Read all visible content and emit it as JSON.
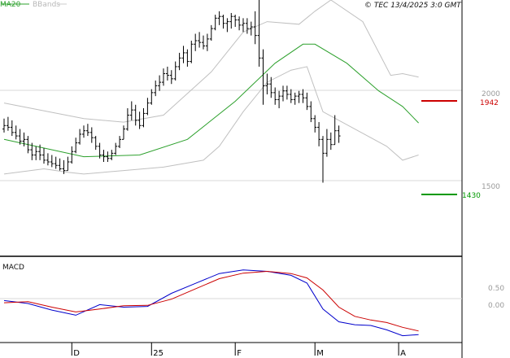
{
  "legend": {
    "ma20_label": "MA20",
    "bbands_label": "BBands",
    "ma20_color": "#2ca02c",
    "bbands_color": "#b8b8b8"
  },
  "copyright": "© TEC 13/4/2025 3:0 GMT",
  "macd_label": "MACD",
  "price_levels": [
    {
      "label": "2000",
      "value": 2000
    },
    {
      "label": "1500",
      "value": 1500
    }
  ],
  "macd_levels": [
    {
      "label": "0.50",
      "value": 0.5
    },
    {
      "label": "0.00",
      "value": 0.0
    }
  ],
  "markers": [
    {
      "label": "1942",
      "value": 1942,
      "color": "#cc0000"
    },
    {
      "label": "1430",
      "value": 1430,
      "color": "#009900"
    }
  ],
  "x_labels": [
    {
      "label": "D",
      "index": 17
    },
    {
      "label": "25",
      "index": 37
    },
    {
      "label": "F",
      "index": 58
    },
    {
      "label": "M",
      "index": 78
    },
    {
      "label": "A",
      "index": 99
    }
  ],
  "chart_data": {
    "type": "line",
    "price_ylim": [
      1005,
      2485
    ],
    "macd_ylim": [
      -0.9,
      1.28
    ],
    "series": [
      {
        "name": "MA20",
        "color": "#2ca02c",
        "x": [
          0,
          20,
          34,
          46,
          58,
          68,
          75,
          78,
          86,
          94,
          100,
          104
        ],
        "y": [
          1680,
          1580,
          1590,
          1680,
          1900,
          2120,
          2230,
          2230,
          2120,
          1960,
          1870,
          1775
        ]
      },
      {
        "name": "BBands upper",
        "color": "#c0c0c0",
        "x": [
          0,
          20,
          30,
          40,
          52,
          60,
          66,
          74,
          78,
          82,
          90,
          97,
          100,
          104
        ],
        "y": [
          1890,
          1800,
          1780,
          1820,
          2070,
          2300,
          2360,
          2345,
          2420,
          2485,
          2360,
          2050,
          2060,
          2040
        ]
      },
      {
        "name": "BBands lower",
        "color": "#c0c0c0",
        "x": [
          0,
          10,
          16,
          20,
          30,
          40,
          50,
          54,
          60,
          66,
          72,
          76,
          80,
          88,
          96,
          100,
          104
        ],
        "y": [
          1480,
          1510,
          1490,
          1480,
          1500,
          1520,
          1560,
          1640,
          1840,
          2010,
          2080,
          2100,
          1840,
          1740,
          1640,
          1560,
          1590
        ]
      },
      {
        "name": "MACD",
        "color": "#0000cc",
        "x": [
          0,
          6,
          12,
          18,
          24,
          30,
          36,
          42,
          48,
          54,
          60,
          66,
          72,
          76,
          80,
          84,
          88,
          92,
          96,
          100,
          104
        ],
        "y": [
          0.18,
          0.1,
          -0.08,
          -0.22,
          0.07,
          0.0,
          0.02,
          0.38,
          0.65,
          0.92,
          1.02,
          0.98,
          0.87,
          0.66,
          -0.05,
          -0.4,
          -0.48,
          -0.5,
          -0.62,
          -0.78,
          -0.75
        ]
      },
      {
        "name": "Signal",
        "color": "#cc0000",
        "x": [
          0,
          6,
          12,
          18,
          24,
          30,
          36,
          42,
          48,
          54,
          60,
          66,
          72,
          76,
          80,
          84,
          88,
          92,
          96,
          100,
          104
        ],
        "y": [
          0.12,
          0.15,
          0.0,
          -0.13,
          -0.05,
          0.04,
          0.05,
          0.22,
          0.5,
          0.78,
          0.93,
          0.98,
          0.92,
          0.8,
          0.47,
          0.0,
          -0.25,
          -0.35,
          -0.42,
          -0.55,
          -0.65
        ]
      }
    ],
    "ohlc": [
      {
        "h": 1800,
        "l": 1720,
        "o": 1740,
        "c": 1760
      },
      {
        "h": 1810,
        "l": 1730,
        "o": 1760,
        "c": 1750
      },
      {
        "h": 1790,
        "l": 1700,
        "o": 1750,
        "c": 1720
      },
      {
        "h": 1760,
        "l": 1680,
        "o": 1720,
        "c": 1700
      },
      {
        "h": 1740,
        "l": 1650,
        "o": 1700,
        "c": 1670
      },
      {
        "h": 1720,
        "l": 1640,
        "o": 1670,
        "c": 1680
      },
      {
        "h": 1700,
        "l": 1600,
        "o": 1680,
        "c": 1620
      },
      {
        "h": 1660,
        "l": 1560,
        "o": 1620,
        "c": 1590
      },
      {
        "h": 1640,
        "l": 1560,
        "o": 1590,
        "c": 1610
      },
      {
        "h": 1650,
        "l": 1560,
        "o": 1610,
        "c": 1590
      },
      {
        "h": 1630,
        "l": 1540,
        "o": 1590,
        "c": 1560
      },
      {
        "h": 1600,
        "l": 1530,
        "o": 1560,
        "c": 1550
      },
      {
        "h": 1590,
        "l": 1520,
        "o": 1550,
        "c": 1540
      },
      {
        "h": 1580,
        "l": 1510,
        "o": 1540,
        "c": 1530
      },
      {
        "h": 1570,
        "l": 1500,
        "o": 1530,
        "c": 1510
      },
      {
        "h": 1560,
        "l": 1480,
        "o": 1510,
        "c": 1500
      },
      {
        "h": 1580,
        "l": 1500,
        "o": 1500,
        "c": 1550
      },
      {
        "h": 1640,
        "l": 1540,
        "o": 1550,
        "c": 1610
      },
      {
        "h": 1690,
        "l": 1600,
        "o": 1610,
        "c": 1660
      },
      {
        "h": 1740,
        "l": 1650,
        "o": 1660,
        "c": 1710
      },
      {
        "h": 1760,
        "l": 1690,
        "o": 1710,
        "c": 1730
      },
      {
        "h": 1770,
        "l": 1700,
        "o": 1730,
        "c": 1720
      },
      {
        "h": 1750,
        "l": 1660,
        "o": 1720,
        "c": 1690
      },
      {
        "h": 1700,
        "l": 1620,
        "o": 1690,
        "c": 1640
      },
      {
        "h": 1660,
        "l": 1570,
        "o": 1640,
        "c": 1590
      },
      {
        "h": 1620,
        "l": 1550,
        "o": 1590,
        "c": 1580
      },
      {
        "h": 1610,
        "l": 1550,
        "o": 1580,
        "c": 1570
      },
      {
        "h": 1620,
        "l": 1560,
        "o": 1570,
        "c": 1600
      },
      {
        "h": 1660,
        "l": 1590,
        "o": 1600,
        "c": 1640
      },
      {
        "h": 1700,
        "l": 1630,
        "o": 1640,
        "c": 1680
      },
      {
        "h": 1760,
        "l": 1680,
        "o": 1680,
        "c": 1740
      },
      {
        "h": 1860,
        "l": 1730,
        "o": 1740,
        "c": 1820
      },
      {
        "h": 1900,
        "l": 1790,
        "o": 1820,
        "c": 1850
      },
      {
        "h": 1880,
        "l": 1760,
        "o": 1850,
        "c": 1790
      },
      {
        "h": 1840,
        "l": 1740,
        "o": 1790,
        "c": 1760
      },
      {
        "h": 1860,
        "l": 1750,
        "o": 1760,
        "c": 1830
      },
      {
        "h": 1920,
        "l": 1820,
        "o": 1830,
        "c": 1890
      },
      {
        "h": 1970,
        "l": 1880,
        "o": 1890,
        "c": 1950
      },
      {
        "h": 2020,
        "l": 1930,
        "o": 1950,
        "c": 1990
      },
      {
        "h": 2050,
        "l": 1960,
        "o": 1990,
        "c": 2010
      },
      {
        "h": 2090,
        "l": 1990,
        "o": 2010,
        "c": 2060
      },
      {
        "h": 2100,
        "l": 2020,
        "o": 2060,
        "c": 2050
      },
      {
        "h": 2080,
        "l": 2000,
        "o": 2050,
        "c": 2030
      },
      {
        "h": 2130,
        "l": 2020,
        "o": 2030,
        "c": 2100
      },
      {
        "h": 2180,
        "l": 2080,
        "o": 2100,
        "c": 2150
      },
      {
        "h": 2220,
        "l": 2120,
        "o": 2150,
        "c": 2180
      },
      {
        "h": 2200,
        "l": 2100,
        "o": 2180,
        "c": 2130
      },
      {
        "h": 2250,
        "l": 2120,
        "o": 2130,
        "c": 2230
      },
      {
        "h": 2290,
        "l": 2190,
        "o": 2230,
        "c": 2250
      },
      {
        "h": 2300,
        "l": 2210,
        "o": 2250,
        "c": 2240
      },
      {
        "h": 2280,
        "l": 2200,
        "o": 2240,
        "c": 2220
      },
      {
        "h": 2290,
        "l": 2190,
        "o": 2220,
        "c": 2260
      },
      {
        "h": 2340,
        "l": 2250,
        "o": 2260,
        "c": 2320
      },
      {
        "h": 2400,
        "l": 2310,
        "o": 2320,
        "c": 2380
      },
      {
        "h": 2420,
        "l": 2340,
        "o": 2380,
        "c": 2390
      },
      {
        "h": 2400,
        "l": 2320,
        "o": 2390,
        "c": 2350
      },
      {
        "h": 2380,
        "l": 2300,
        "o": 2350,
        "c": 2360
      },
      {
        "h": 2410,
        "l": 2320,
        "o": 2360,
        "c": 2390
      },
      {
        "h": 2400,
        "l": 2330,
        "o": 2390,
        "c": 2370
      },
      {
        "h": 2390,
        "l": 2310,
        "o": 2370,
        "c": 2340
      },
      {
        "h": 2380,
        "l": 2300,
        "o": 2340,
        "c": 2350
      },
      {
        "h": 2380,
        "l": 2290,
        "o": 2350,
        "c": 2320
      },
      {
        "h": 2360,
        "l": 2280,
        "o": 2320,
        "c": 2330
      },
      {
        "h": 2420,
        "l": 2230,
        "o": 2330,
        "c": 2280
      },
      {
        "h": 2485,
        "l": 2100,
        "o": 2280,
        "c": 2150
      },
      {
        "h": 2200,
        "l": 1880,
        "o": 2150,
        "c": 1990
      },
      {
        "h": 2060,
        "l": 1940,
        "o": 1990,
        "c": 2000
      },
      {
        "h": 2040,
        "l": 1920,
        "o": 2000,
        "c": 1950
      },
      {
        "h": 1980,
        "l": 1880,
        "o": 1950,
        "c": 1910
      },
      {
        "h": 1960,
        "l": 1860,
        "o": 1910,
        "c": 1930
      },
      {
        "h": 1990,
        "l": 1900,
        "o": 1930,
        "c": 1960
      },
      {
        "h": 1990,
        "l": 1910,
        "o": 1960,
        "c": 1940
      },
      {
        "h": 1970,
        "l": 1890,
        "o": 1940,
        "c": 1910
      },
      {
        "h": 1950,
        "l": 1880,
        "o": 1910,
        "c": 1930
      },
      {
        "h": 1960,
        "l": 1890,
        "o": 1930,
        "c": 1940
      },
      {
        "h": 1970,
        "l": 1890,
        "o": 1940,
        "c": 1920
      },
      {
        "h": 1950,
        "l": 1850,
        "o": 1920,
        "c": 1870
      },
      {
        "h": 1900,
        "l": 1780,
        "o": 1870,
        "c": 1800
      },
      {
        "h": 1820,
        "l": 1720,
        "o": 1800,
        "c": 1750
      },
      {
        "h": 1780,
        "l": 1640,
        "o": 1750,
        "c": 1680
      },
      {
        "h": 1700,
        "l": 1430,
        "o": 1680,
        "c": 1600
      },
      {
        "h": 1740,
        "l": 1580,
        "o": 1600,
        "c": 1680
      },
      {
        "h": 1720,
        "l": 1620,
        "o": 1680,
        "c": 1650
      },
      {
        "h": 1820,
        "l": 1650,
        "o": 1650,
        "c": 1730
      },
      {
        "h": 1760,
        "l": 1660,
        "o": 1730,
        "c": 1700
      }
    ]
  }
}
